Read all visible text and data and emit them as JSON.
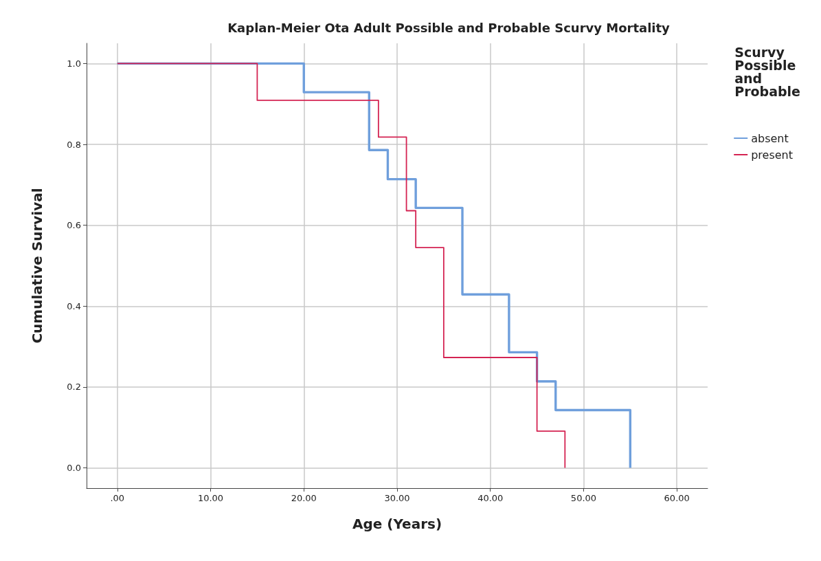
{
  "chart_data": {
    "type": "step",
    "title": "Kaplan-Meier Ota Adult Possible and Probable Scurvy Mortality",
    "xlabel": "Age (Years)",
    "ylabel": "Cumulative Survival",
    "legend_title": "Scurvy Possible and Probable",
    "series": [
      {
        "name": "absent",
        "color": "#6f9fdc",
        "x": [
          0,
          20,
          27,
          29,
          32,
          37,
          42,
          45,
          47,
          55
        ],
        "values": [
          1.0,
          0.929,
          0.786,
          0.714,
          0.643,
          0.429,
          0.286,
          0.214,
          0.143,
          0.0
        ]
      },
      {
        "name": "present",
        "color": "#d42352",
        "x": [
          0,
          15,
          28,
          31,
          32,
          35,
          45,
          48
        ],
        "values": [
          1.0,
          0.909,
          0.818,
          0.636,
          0.545,
          0.273,
          0.091,
          0.0
        ]
      }
    ],
    "xlim": [
      -3.3,
      63.3
    ],
    "ylim": [
      -0.05,
      1.05
    ],
    "xticks": [
      {
        "value": 0,
        "label": ".00"
      },
      {
        "value": 10,
        "label": "10.00"
      },
      {
        "value": 20,
        "label": "20.00"
      },
      {
        "value": 30,
        "label": "30.00"
      },
      {
        "value": 40,
        "label": "40.00"
      },
      {
        "value": 50,
        "label": "50.00"
      },
      {
        "value": 60,
        "label": "60.00"
      }
    ],
    "yticks": [
      {
        "value": 0,
        "label": "0.0"
      },
      {
        "value": 0.2,
        "label": "0.2"
      },
      {
        "value": 0.4,
        "label": "0.4"
      },
      {
        "value": 0.6,
        "label": "0.6"
      },
      {
        "value": 0.8,
        "label": "0.8"
      },
      {
        "value": 1,
        "label": "1.0"
      }
    ],
    "grid": true,
    "legend": "top right",
    "marker": "none",
    "line_style": "solid"
  }
}
